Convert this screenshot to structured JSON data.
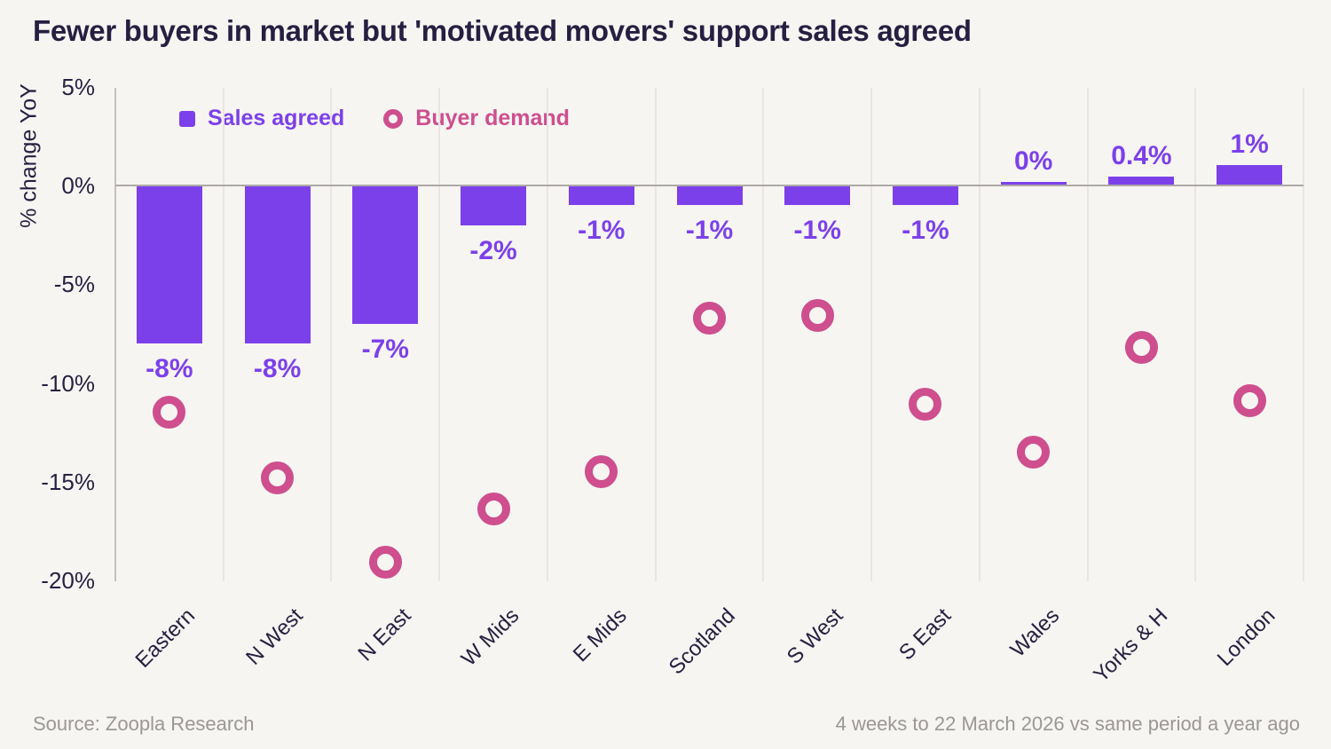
{
  "title": "Fewer buyers in market but 'motivated movers' support sales agreed",
  "y_axis": {
    "label": "% change YoY",
    "tick_labels": [
      "5%",
      "0%",
      "-5%",
      "-10%",
      "-15%",
      "-20%"
    ]
  },
  "legend": {
    "sales_agreed": "Sales agreed",
    "buyer_demand": "Buyer demand"
  },
  "footer": {
    "source": "Source: Zoopla Research",
    "period": "4 weeks to 22 March 2026 vs same period a year ago"
  },
  "colors": {
    "background": "#F7F5F2",
    "sales_agreed_purple": "#7C40EA",
    "buyer_demand_pink": "#CE4E8E",
    "text_navy": "#271F41",
    "gridline": "#E8E5E2",
    "zero_line": "#ACA9A6",
    "axis_line": "#C4C1BE",
    "footer_gray": "#9A9795"
  },
  "chart_data": {
    "type": "bar",
    "title": "Fewer buyers in market but 'motivated movers' support sales agreed",
    "categories": [
      "Eastern",
      "N West",
      "N East",
      "W Mids",
      "E Mids",
      "Scotland",
      "S West",
      "S East",
      "Wales",
      "Yorks & H",
      "London"
    ],
    "series": [
      {
        "name": "Sales agreed",
        "type": "bar",
        "color": "#7C40EA",
        "values": [
          -8,
          -8,
          -7,
          -2,
          -1,
          -1,
          -1,
          -1,
          0,
          0.4,
          1
        ],
        "labels": [
          "-8%",
          "-8%",
          "-7%",
          "-2%",
          "-1%",
          "-1%",
          "-1%",
          "-1%",
          "0%",
          "0.4%",
          "1%"
        ]
      },
      {
        "name": "Buyer demand",
        "type": "scatter",
        "marker": "ring",
        "color": "#CE4E8E",
        "values": [
          -11.5,
          -14.8,
          -19.1,
          -16.4,
          -14.5,
          -6.7,
          -6.6,
          -11.1,
          -13.5,
          -8.2,
          -10.9
        ]
      }
    ],
    "xlabel": "",
    "ylabel": "% change YoY",
    "ylim": [
      -20,
      5
    ],
    "yticks": [
      5,
      0,
      -5,
      -10,
      -15,
      -20
    ],
    "ytick_labels": [
      "5%",
      "0%",
      "-5%",
      "-10%",
      "-15%",
      "-20%"
    ],
    "grid": "vertical-only",
    "legend_position": "top-left-inside",
    "source": "Source: Zoopla Research",
    "note": "4 weeks to 22 March 2026 vs same period a year ago"
  }
}
